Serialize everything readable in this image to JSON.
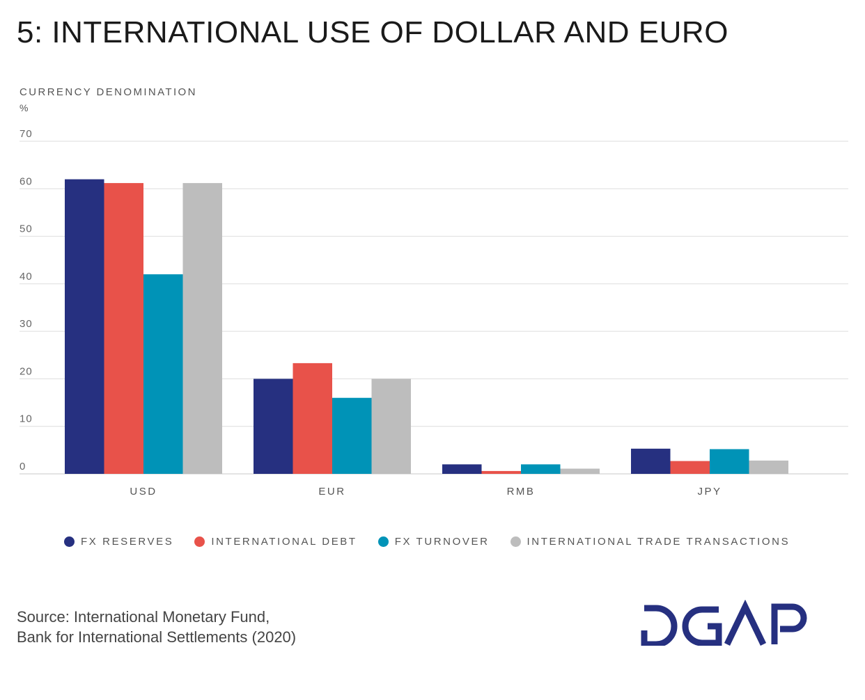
{
  "title": "5: INTERNATIONAL USE OF DOLLAR AND EURO",
  "y_axis": {
    "label": "CURRENCY DENOMINATION",
    "unit": "%"
  },
  "chart_data": {
    "type": "bar",
    "title": "5: INTERNATIONAL USE OF DOLLAR AND EURO",
    "xlabel": "",
    "ylabel": "CURRENCY DENOMINATION %",
    "ylim": [
      0,
      70
    ],
    "yticks": [
      0,
      10,
      20,
      30,
      40,
      50,
      60,
      70
    ],
    "grid": true,
    "legend_position": "bottom",
    "categories": [
      "USD",
      "EUR",
      "RMB",
      "JPY"
    ],
    "series": [
      {
        "name": "FX RESERVES",
        "color": "#263080",
        "values": [
          62,
          20,
          2,
          5.3
        ]
      },
      {
        "name": "INTERNATIONAL DEBT",
        "color": "#e8524a",
        "values": [
          61.2,
          23.3,
          0.6,
          2.7
        ]
      },
      {
        "name": "FX TURNOVER",
        "color": "#0093b7",
        "values": [
          42,
          16,
          2,
          5.2
        ]
      },
      {
        "name": "INTERNATIONAL TRADE TRANSACTIONS",
        "color": "#bdbdbd",
        "values": [
          61.2,
          20,
          1.1,
          2.8
        ]
      }
    ]
  },
  "source": {
    "line1": "Source: International Monetary Fund,",
    "line2": "Bank for International Settlements (2020)"
  },
  "logo": {
    "text": "DGAP",
    "color": "#263080"
  }
}
